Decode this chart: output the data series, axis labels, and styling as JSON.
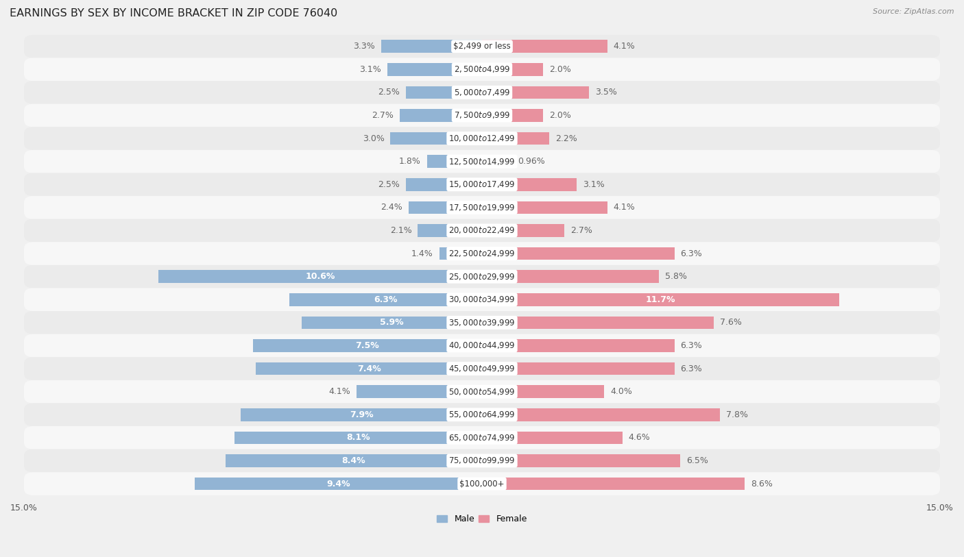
{
  "title": "EARNINGS BY SEX BY INCOME BRACKET IN ZIP CODE 76040",
  "source": "Source: ZipAtlas.com",
  "categories": [
    "$2,499 or less",
    "$2,500 to $4,999",
    "$5,000 to $7,499",
    "$7,500 to $9,999",
    "$10,000 to $12,499",
    "$12,500 to $14,999",
    "$15,000 to $17,499",
    "$17,500 to $19,999",
    "$20,000 to $22,499",
    "$22,500 to $24,999",
    "$25,000 to $29,999",
    "$30,000 to $34,999",
    "$35,000 to $39,999",
    "$40,000 to $44,999",
    "$45,000 to $49,999",
    "$50,000 to $54,999",
    "$55,000 to $64,999",
    "$65,000 to $74,999",
    "$75,000 to $99,999",
    "$100,000+"
  ],
  "male": [
    3.3,
    3.1,
    2.5,
    2.7,
    3.0,
    1.8,
    2.5,
    2.4,
    2.1,
    1.4,
    10.6,
    6.3,
    5.9,
    7.5,
    7.4,
    4.1,
    7.9,
    8.1,
    8.4,
    9.4
  ],
  "female": [
    4.1,
    2.0,
    3.5,
    2.0,
    2.2,
    0.96,
    3.1,
    4.1,
    2.7,
    6.3,
    5.8,
    11.7,
    7.6,
    6.3,
    6.3,
    4.0,
    7.8,
    4.6,
    6.5,
    8.6
  ],
  "male_color": "#92b4d4",
  "female_color": "#e8919e",
  "male_label_inside_color": "#ffffff",
  "label_color": "#666666",
  "row_color_odd": "#ebebeb",
  "row_color_even": "#f7f7f7",
  "center_label_bg": "#ffffff",
  "center_label_color": "#333333",
  "background_color": "#f0f0f0",
  "max_val": 15.0,
  "title_fontsize": 11.5,
  "label_fontsize": 9,
  "category_fontsize": 8.5,
  "source_fontsize": 8
}
